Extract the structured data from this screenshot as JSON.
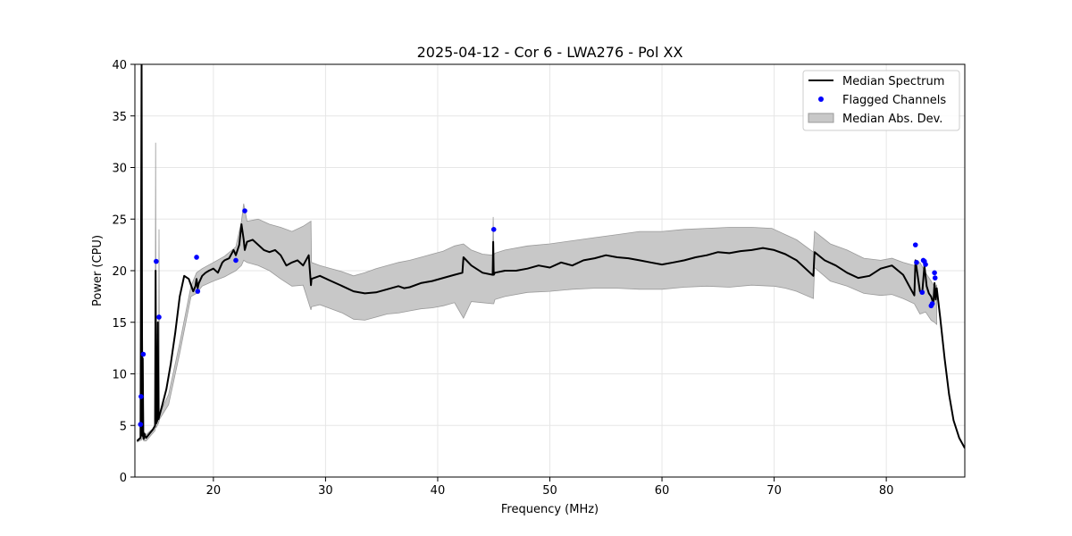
{
  "chart_data": {
    "type": "line",
    "title": "2025-04-12 - Cor 6 - LWA276 - Pol XX",
    "xlabel": "Frequency (MHz)",
    "ylabel": "Power (CPU)",
    "xlim": [
      13,
      87
    ],
    "ylim": [
      0,
      40
    ],
    "xticks": [
      20,
      30,
      40,
      50,
      60,
      70,
      80
    ],
    "yticks": [
      0,
      5,
      10,
      15,
      20,
      25,
      30,
      35,
      40
    ],
    "grid": true,
    "legend": {
      "position": "top-right",
      "entries": [
        "Median Spectrum",
        "Flagged Channels",
        "Median Abs. Dev."
      ]
    },
    "colors": {
      "median": "#000000",
      "flagged": "#0000ff",
      "mad_fill": "#c8c8c8",
      "mad_edge": "#9a9a9a",
      "grid": "#e6e6e6"
    },
    "series": [
      {
        "name": "Median Spectrum",
        "x": [
          13.2,
          13.5,
          13.6,
          13.65,
          13.7,
          13.75,
          13.8,
          13.85,
          13.9,
          14.0,
          14.3,
          14.6,
          14.8,
          14.85,
          14.9,
          15.0,
          15.05,
          15.1,
          15.15,
          15.2,
          15.4,
          15.8,
          16.2,
          16.6,
          17.0,
          17.4,
          17.8,
          18.2,
          18.4,
          18.5,
          18.6,
          18.7,
          19.0,
          19.3,
          19.6,
          20.0,
          20.4,
          20.8,
          21.0,
          21.4,
          21.8,
          22.0,
          22.3,
          22.5,
          22.7,
          22.8,
          23.0,
          23.5,
          24.0,
          24.5,
          25.0,
          25.5,
          26.0,
          26.5,
          27.0,
          27.5,
          28.0,
          28.5,
          28.7,
          28.75,
          29.5,
          30.5,
          31.5,
          32.5,
          33.5,
          34.5,
          35.5,
          36.5,
          37.0,
          37.5,
          38.5,
          39.5,
          40.5,
          41.5,
          42.2,
          42.3,
          43.0,
          44.0,
          44.9,
          44.95,
          45.0,
          45.1,
          46.0,
          47.0,
          48.0,
          49.0,
          50.0,
          51.0,
          52.0,
          53.0,
          54.0,
          55.0,
          56.0,
          57.0,
          58.0,
          59.0,
          60.0,
          61.0,
          62.0,
          63.0,
          64.0,
          65.0,
          66.0,
          67.0,
          68.0,
          69.0,
          70.0,
          71.0,
          72.0,
          73.5,
          73.6,
          74.5,
          75.5,
          76.5,
          77.5,
          78.5,
          79.5,
          80.5,
          81.5,
          82.2,
          82.5,
          82.6,
          82.8,
          83.0,
          83.2,
          83.4,
          83.6,
          83.8,
          84.0,
          84.2,
          84.3,
          84.4,
          84.5,
          84.8,
          85.2,
          85.6,
          86.0,
          86.5,
          87.0
        ],
        "values": [
          3.5,
          3.8,
          40,
          4.0,
          11.5,
          3.9,
          3.7,
          4.2,
          4.0,
          3.8,
          4.2,
          4.6,
          5.0,
          20.0,
          5.2,
          5.5,
          15.0,
          5.6,
          5.8,
          6.0,
          6.8,
          8.5,
          11.0,
          14.0,
          17.5,
          19.5,
          19.2,
          18.0,
          18.5,
          19.2,
          18.3,
          18.8,
          19.5,
          19.8,
          20.0,
          20.2,
          19.8,
          20.8,
          21.0,
          21.2,
          22.0,
          21.5,
          22.5,
          24.5,
          23.0,
          22.0,
          22.8,
          23.0,
          22.5,
          22.0,
          21.8,
          22.0,
          21.5,
          20.5,
          20.8,
          21.0,
          20.5,
          21.5,
          18.6,
          19.2,
          19.5,
          19.0,
          18.5,
          18.0,
          17.8,
          17.9,
          18.2,
          18.5,
          18.3,
          18.4,
          18.8,
          19.0,
          19.3,
          19.6,
          19.8,
          21.3,
          20.5,
          19.8,
          19.6,
          22.8,
          19.6,
          19.8,
          20.0,
          20.0,
          20.2,
          20.5,
          20.3,
          20.8,
          20.5,
          21.0,
          21.2,
          21.5,
          21.3,
          21.2,
          21.0,
          20.8,
          20.6,
          20.8,
          21.0,
          21.3,
          21.5,
          21.8,
          21.7,
          21.9,
          22.0,
          22.2,
          22.0,
          21.6,
          21.0,
          19.5,
          21.8,
          21.0,
          20.5,
          19.8,
          19.3,
          19.5,
          20.2,
          20.5,
          19.6,
          18.2,
          17.6,
          21.0,
          19.5,
          18.0,
          17.8,
          20.5,
          18.5,
          17.8,
          17.5,
          16.8,
          18.8,
          17.2,
          18.3,
          15.5,
          11.5,
          8.0,
          5.5,
          3.8,
          2.8
        ]
      },
      {
        "name": "Median Abs. Dev.",
        "x": [
          13.2,
          13.6,
          13.65,
          13.7,
          13.8,
          14.0,
          14.8,
          14.85,
          14.9,
          15.1,
          15.15,
          15.2,
          16.0,
          17.0,
          18.0,
          18.5,
          19.0,
          20.0,
          21.0,
          22.0,
          22.5,
          22.7,
          23.0,
          24.0,
          25.0,
          26.0,
          27.0,
          28.0,
          28.7,
          28.75,
          29.5,
          30.5,
          31.5,
          32.5,
          33.5,
          34.5,
          35.5,
          36.5,
          37.5,
          38.5,
          39.5,
          40.5,
          41.5,
          42.3,
          43.0,
          44.0,
          44.9,
          44.95,
          45.0,
          45.1,
          46.0,
          48.0,
          50.0,
          52.0,
          54.0,
          56.0,
          58.0,
          60.0,
          62.0,
          64.0,
          66.0,
          68.0,
          69.8,
          70.0,
          71.0,
          72.0,
          73.5,
          73.6,
          75.0,
          76.5,
          78.0,
          79.5,
          80.5,
          81.5,
          82.5,
          83.0,
          83.5,
          84.0,
          84.3,
          84.5
        ],
        "upper": [
          3.6,
          4.0,
          17.5,
          12.0,
          4.4,
          4.1,
          4.9,
          32.4,
          5.3,
          5.7,
          24.0,
          6.1,
          8.0,
          13.0,
          18.5,
          19.8,
          20.2,
          20.8,
          21.4,
          22.3,
          24.8,
          26.5,
          24.8,
          25.0,
          24.5,
          24.2,
          23.8,
          24.3,
          24.8,
          20.8,
          20.5,
          20.2,
          19.9,
          19.5,
          19.8,
          20.2,
          20.5,
          20.8,
          21.0,
          21.3,
          21.6,
          21.9,
          22.4,
          22.6,
          22.0,
          21.6,
          21.5,
          25.2,
          21.5,
          21.7,
          22.0,
          22.4,
          22.6,
          22.9,
          23.2,
          23.5,
          23.8,
          23.8,
          24.0,
          24.1,
          24.2,
          24.2,
          24.1,
          24.0,
          23.5,
          23.0,
          21.8,
          23.8,
          22.6,
          22.0,
          21.2,
          21.0,
          21.2,
          20.8,
          20.5,
          20.8,
          19.8,
          19.0,
          18.4,
          18.6
        ],
        "lower": [
          3.4,
          3.6,
          3.7,
          3.8,
          3.5,
          3.5,
          4.5,
          5.0,
          4.8,
          5.2,
          5.4,
          5.6,
          7.0,
          12.0,
          17.5,
          17.8,
          18.5,
          19.0,
          19.4,
          20.0,
          20.5,
          21.0,
          20.8,
          20.5,
          20.0,
          19.2,
          18.5,
          18.6,
          16.2,
          16.5,
          16.7,
          16.3,
          15.9,
          15.3,
          15.2,
          15.5,
          15.8,
          15.9,
          16.1,
          16.3,
          16.4,
          16.6,
          16.9,
          15.4,
          17.0,
          16.9,
          16.8,
          16.8,
          16.8,
          17.2,
          17.5,
          17.9,
          18.0,
          18.2,
          18.3,
          18.3,
          18.2,
          18.2,
          18.4,
          18.5,
          18.4,
          18.6,
          18.5,
          18.5,
          18.3,
          18.0,
          17.3,
          20.3,
          19.0,
          18.5,
          17.8,
          17.6,
          17.7,
          17.3,
          16.8,
          15.8,
          16.0,
          15.2,
          15.0,
          14.8
        ]
      }
    ],
    "flagged_channels": {
      "name": "Flagged Channels",
      "x": [
        13.5,
        13.55,
        13.75,
        14.9,
        15.15,
        18.5,
        18.6,
        22.0,
        22.8,
        45.0,
        82.6,
        82.7,
        83.2,
        83.3,
        83.4,
        83.5,
        84.0,
        84.1,
        84.3,
        84.35
      ],
      "y": [
        5.1,
        7.8,
        11.9,
        20.9,
        15.5,
        21.3,
        18.0,
        21.0,
        25.8,
        24.0,
        22.5,
        20.8,
        17.9,
        21.0,
        20.9,
        20.6,
        16.6,
        16.8,
        19.8,
        19.3
      ]
    }
  }
}
